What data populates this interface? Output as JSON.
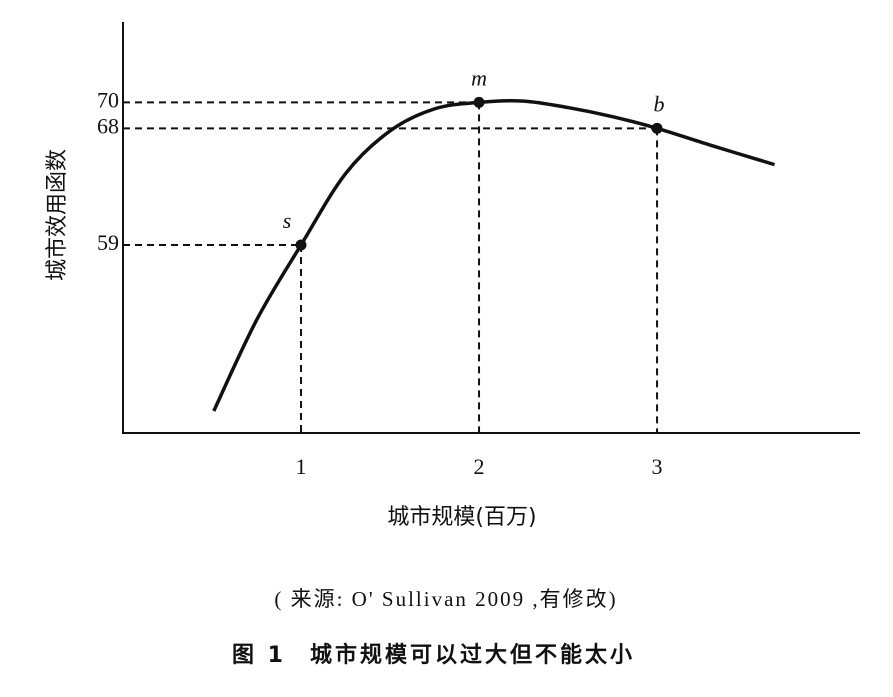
{
  "chart_data": {
    "type": "line",
    "y_label": "城市效用函数",
    "x_label": "城市规模(百万)",
    "x": [
      0.51,
      0.75,
      1,
      1.25,
      1.5,
      1.75,
      2,
      2.25,
      2.5,
      2.75,
      3,
      3.3,
      3.66
    ],
    "series": [
      {
        "color": "#111111",
        "values": [
          46.2,
          53.2,
          59,
          64.5,
          67.8,
          69.5,
          70,
          70.1,
          69.6,
          68.9,
          68,
          66.7,
          65.2
        ]
      }
    ],
    "points": {
      "x": [
        1,
        2,
        3
      ],
      "values": [
        59,
        70,
        68
      ],
      "labels": [
        "s",
        "m",
        "b"
      ]
    },
    "xlim": [
      0,
      4.14
    ],
    "ylim": [
      44.5,
      76.2
    ],
    "xticks": [
      1,
      2,
      3
    ],
    "yticks": [
      59,
      68,
      70
    ]
  },
  "caption": "( 来源: O' Sullivan 2009 ,有修改)",
  "figure": {
    "number": "图 1",
    "title": "城市规模可以过大但不能太小"
  }
}
